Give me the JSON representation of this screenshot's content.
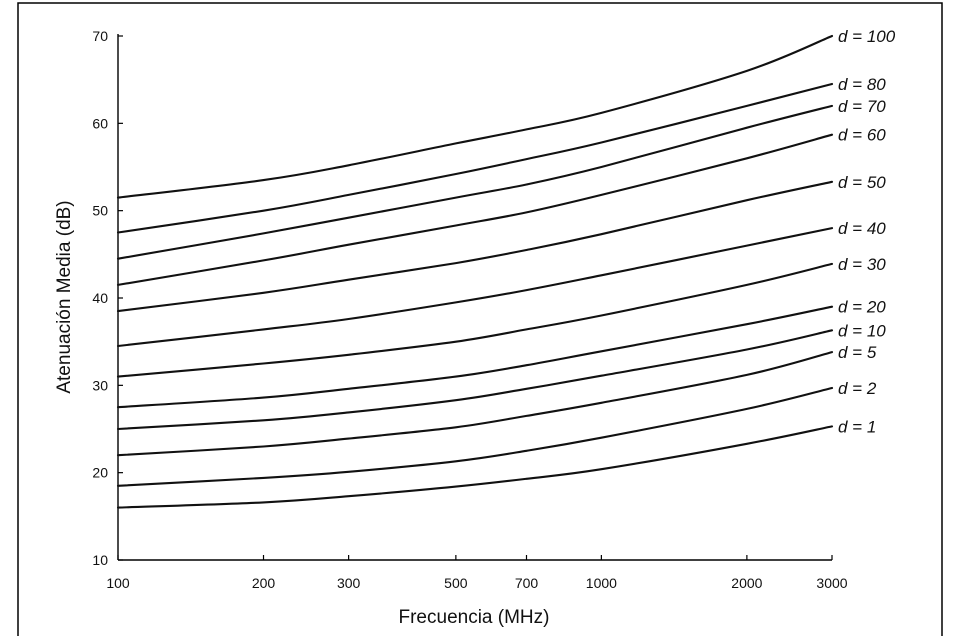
{
  "chart_data": {
    "type": "line",
    "title": "",
    "xlabel": "Frecuencia (MHz)",
    "ylabel": "Atenuación Media (dB)",
    "xscale": "log",
    "xlim": [
      100,
      3000
    ],
    "ylim": [
      10,
      70
    ],
    "xticks": [
      100,
      200,
      300,
      500,
      700,
      1000,
      2000,
      3000
    ],
    "xtick_labels": [
      "100",
      "200",
      "300",
      "500",
      "700",
      "1000",
      "2000",
      "3000"
    ],
    "yticks": [
      10,
      20,
      30,
      40,
      50,
      60,
      70
    ],
    "ytick_labels": [
      "10",
      "20",
      "30",
      "40",
      "50",
      "60",
      "70"
    ],
    "grid": false,
    "legend": "curve labels at right end of each line",
    "x": [
      100,
      200,
      300,
      500,
      700,
      1000,
      2000,
      3000
    ],
    "series": [
      {
        "name": "d = 100",
        "values": [
          51.5,
          53.5,
          55.2,
          57.7,
          59.3,
          61.2,
          66.0,
          70.0
        ]
      },
      {
        "name": "d = 80",
        "values": [
          47.5,
          50.0,
          51.8,
          54.2,
          55.9,
          57.8,
          62.0,
          64.5
        ]
      },
      {
        "name": "d = 70",
        "values": [
          44.5,
          47.4,
          49.2,
          51.5,
          53.0,
          55.0,
          59.5,
          62.0
        ]
      },
      {
        "name": "d = 60",
        "values": [
          41.5,
          44.3,
          46.1,
          48.3,
          49.8,
          51.8,
          56.0,
          58.7
        ]
      },
      {
        "name": "d = 50",
        "values": [
          38.5,
          40.6,
          42.1,
          44.0,
          45.5,
          47.3,
          51.2,
          53.3
        ]
      },
      {
        "name": "d = 40",
        "values": [
          34.5,
          36.4,
          37.6,
          39.5,
          40.9,
          42.6,
          46.0,
          48.0
        ]
      },
      {
        "name": "d = 30",
        "values": [
          31.0,
          32.5,
          33.5,
          35.0,
          36.4,
          38.0,
          41.5,
          43.9
        ]
      },
      {
        "name": "d = 20",
        "values": [
          27.5,
          28.6,
          29.6,
          31.0,
          32.3,
          33.9,
          37.0,
          39.0
        ]
      },
      {
        "name": "d = 10",
        "values": [
          25.0,
          26.0,
          26.9,
          28.3,
          29.6,
          31.1,
          34.1,
          36.3
        ]
      },
      {
        "name": "d = 5",
        "values": [
          22.0,
          23.0,
          23.9,
          25.2,
          26.5,
          28.0,
          31.2,
          33.8
        ]
      },
      {
        "name": "d = 2",
        "values": [
          18.5,
          19.4,
          20.1,
          21.3,
          22.5,
          24.0,
          27.3,
          29.7
        ]
      },
      {
        "name": "d = 1",
        "values": [
          16.0,
          16.6,
          17.3,
          18.4,
          19.3,
          20.4,
          23.3,
          25.3
        ]
      }
    ]
  }
}
